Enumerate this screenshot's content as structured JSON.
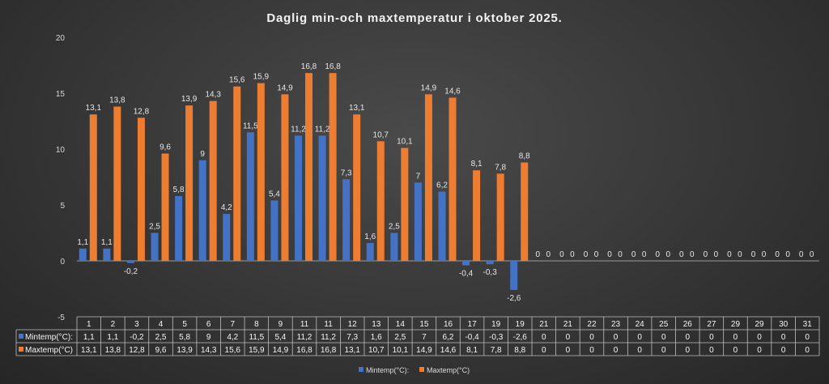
{
  "chart_data": {
    "type": "bar",
    "title": "Daglig min-och maxtemperatur i oktober 2025.",
    "categories": [
      "1",
      "2",
      "3",
      "4",
      "5",
      "6",
      "7",
      "8",
      "9",
      "11",
      "11",
      "12",
      "13",
      "14",
      "15",
      "16",
      "17",
      "19",
      "19",
      "21",
      "21",
      "22",
      "23",
      "24",
      "25",
      "26",
      "27",
      "29",
      "29",
      "30",
      "31"
    ],
    "series": [
      {
        "name": "Mintemp(°C):",
        "color": "#4472c4",
        "values": [
          1.1,
          1.1,
          -0.2,
          2.5,
          5.8,
          9,
          4.2,
          11.5,
          5.4,
          11.2,
          11.2,
          7.3,
          1.6,
          2.5,
          7,
          6.2,
          -0.4,
          -0.3,
          -2.6,
          0,
          0,
          0,
          0,
          0,
          0,
          0,
          0,
          0,
          0,
          0,
          0
        ],
        "labels": [
          "1,1",
          "1,1",
          "-0,2",
          "2,5",
          "5,8",
          "9",
          "4,2",
          "11,5",
          "5,4",
          "11,2",
          "11,2",
          "7,3",
          "1,6",
          "2,5",
          "7",
          "6,2",
          "-0,4",
          "-0,3",
          "-2,6",
          "0",
          "0",
          "0",
          "0",
          "0",
          "0",
          "0",
          "0",
          "0",
          "0",
          "0",
          "0"
        ]
      },
      {
        "name": "Maxtemp(°C)",
        "color": "#ed7d31",
        "values": [
          13.1,
          13.8,
          12.8,
          9.6,
          13.9,
          14.3,
          15.6,
          15.9,
          14.9,
          16.8,
          16.8,
          13.1,
          10.7,
          10.1,
          14.9,
          14.6,
          8.1,
          7.8,
          8.8,
          0,
          0,
          0,
          0,
          0,
          0,
          0,
          0,
          0,
          0,
          0,
          0
        ],
        "labels": [
          "13,1",
          "13,8",
          "12,8",
          "9,6",
          "13,9",
          "14,3",
          "15,6",
          "15,9",
          "14,9",
          "16,8",
          "16,8",
          "13,1",
          "10,7",
          "10,1",
          "14,9",
          "14,6",
          "8,1",
          "7,8",
          "8,8",
          "0",
          "0",
          "0",
          "0",
          "0",
          "0",
          "0",
          "0",
          "0",
          "0",
          "0",
          "0"
        ]
      }
    ],
    "ylim": [
      -5,
      20
    ],
    "yticks": [
      "-5",
      "0",
      "5",
      "10",
      "15",
      "20"
    ],
    "ytick_values": [
      -5,
      0,
      5,
      10,
      15,
      20
    ],
    "grid": false,
    "legend": "bottom",
    "data_table": true
  }
}
